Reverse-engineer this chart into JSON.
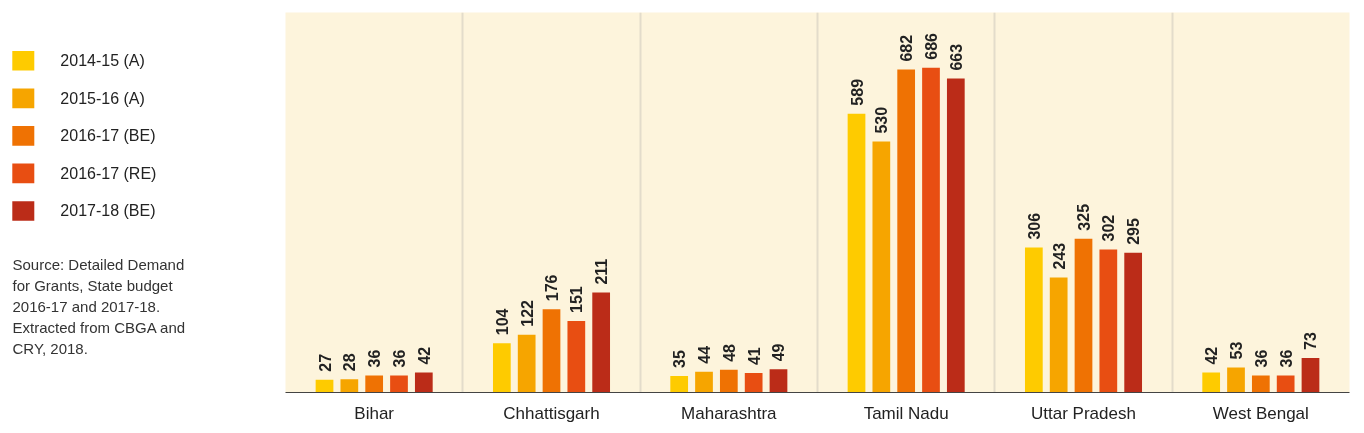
{
  "chart_data": {
    "type": "bar",
    "categories": [
      "Bihar",
      "Chhattisgarh",
      "Maharashtra",
      "Tamil Nadu",
      "Uttar Pradesh",
      "West Bengal"
    ],
    "series": [
      {
        "name": "2014-15 (A)",
        "color": "#fecb00",
        "values": [
          27,
          104,
          35,
          589,
          306,
          42
        ]
      },
      {
        "name": "2015-16 (A)",
        "color": "#f6a500",
        "values": [
          28,
          122,
          44,
          530,
          243,
          53
        ]
      },
      {
        "name": "2016-17 (BE)",
        "color": "#ef7203",
        "values": [
          36,
          176,
          48,
          682,
          325,
          36
        ]
      },
      {
        "name": "2016-17 (RE)",
        "color": "#e84e12",
        "values": [
          36,
          151,
          41,
          686,
          302,
          36
        ]
      },
      {
        "name": "2017-18 (BE)",
        "color": "#bb2c18",
        "values": [
          42,
          211,
          49,
          663,
          295,
          73
        ]
      }
    ],
    "data_labels": true,
    "legend": "left",
    "grid": "x",
    "annotations": [
      "Source: Detailed Demand for Grants, State budget 2016-17 and 2017-18. Extracted from CBGA and CRY, 2018."
    ]
  }
}
